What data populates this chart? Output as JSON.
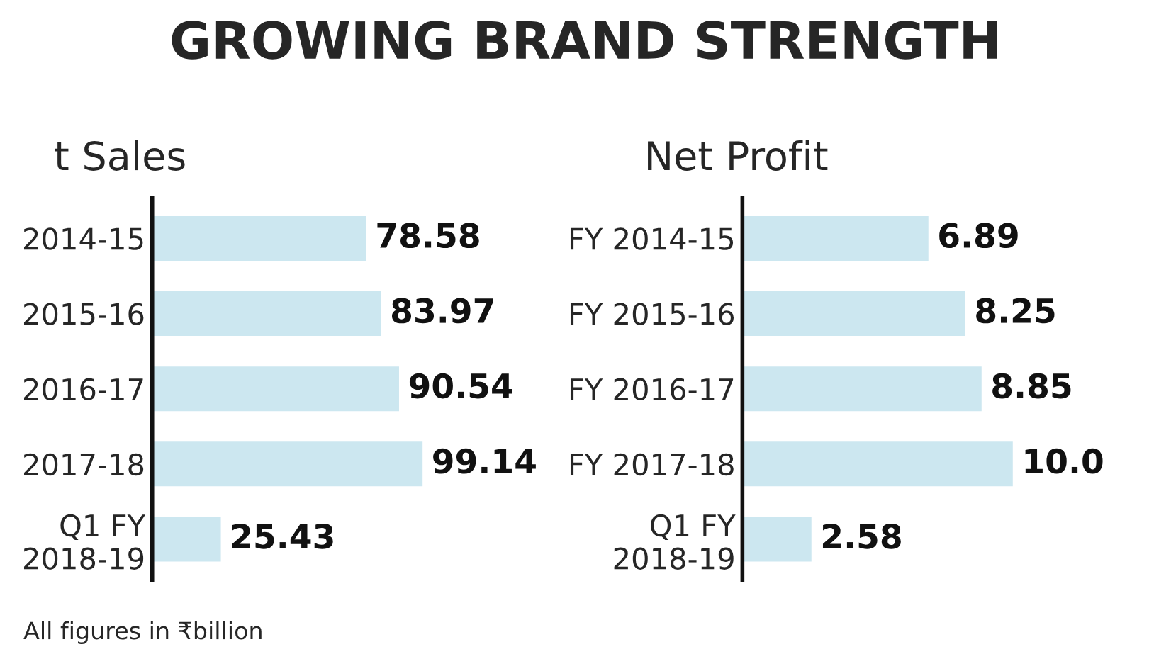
{
  "chart_data": [
    {
      "type": "bar",
      "orientation": "horizontal",
      "title": "GROWING BRAND STRENGTH",
      "subtitle": "t Sales",
      "categories": [
        "2014-15",
        "2015-16",
        "2016-17",
        "2017-18",
        "Q1 FY\n2018-19"
      ],
      "values": [
        78.58,
        83.97,
        90.54,
        99.14,
        25.43
      ],
      "color": "#cce7f0",
      "data_labels": true,
      "annotations": [
        "All figures in ₹billion"
      ]
    },
    {
      "type": "bar",
      "orientation": "horizontal",
      "subtitle": "Net Profit",
      "categories": [
        "FY 2014-15",
        "FY 2015-16",
        "FY 2016-17",
        "FY 2017-18",
        "Q1 FY\n2018-19"
      ],
      "values": [
        6.89,
        8.25,
        8.85,
        10.0,
        2.58
      ],
      "value_labels": [
        "6.89",
        "8.25",
        "8.85",
        "10.0",
        "2.58"
      ],
      "color": "#cce7f0"
    }
  ]
}
